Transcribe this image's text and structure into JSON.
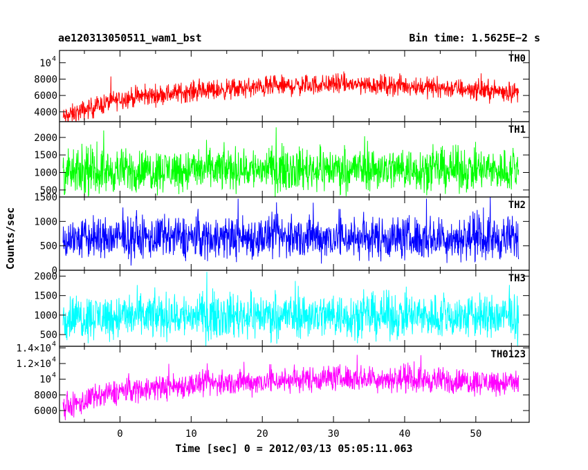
{
  "header": {
    "left_title": "ae120313050511_wam1_bst",
    "right_title": "Bin time: 1.5625E−2 s"
  },
  "chart_data": {
    "type": "line",
    "xlabel": "Time [sec] 0 = 2012/03/13 05:05:11.063",
    "ylabel": "Counts/sec",
    "xlim": [
      -8.5,
      57.5
    ],
    "x_range_data": [
      -8,
      56
    ],
    "x_ticks": [
      {
        "value": 0,
        "label": "0"
      },
      {
        "value": 10,
        "label": "10"
      },
      {
        "value": 20,
        "label": "20"
      },
      {
        "value": 30,
        "label": "30"
      },
      {
        "value": 40,
        "label": "40"
      },
      {
        "value": 50,
        "label": "50"
      }
    ],
    "panels": [
      {
        "name": "TH0",
        "color": "#ff0000",
        "ylim": [
          2800,
          11500
        ],
        "trend": [
          [
            -8,
            3300
          ],
          [
            -4,
            4500
          ],
          [
            0,
            5600
          ],
          [
            10,
            6500
          ],
          [
            20,
            7000
          ],
          [
            30,
            7400
          ],
          [
            40,
            7200
          ],
          [
            56,
            6400
          ]
        ],
        "spread": 1800,
        "yticks": [
          {
            "value": 4000,
            "label": "4000"
          },
          {
            "value": 6000,
            "label": "6000"
          },
          {
            "value": 8000,
            "label": "8000"
          },
          {
            "value": 10000,
            "label": "10",
            "exp": "4"
          }
        ]
      },
      {
        "name": "TH1",
        "color": "#00ff00",
        "ylim": [
          300,
          2450
        ],
        "trend": [
          [
            -8,
            950
          ],
          [
            0,
            1050
          ],
          [
            20,
            1100
          ],
          [
            40,
            1100
          ],
          [
            56,
            1050
          ]
        ],
        "spread": 900,
        "yticks": [
          {
            "value": 500,
            "label": "500"
          },
          {
            "value": 1000,
            "label": "1000"
          },
          {
            "value": 1500,
            "label": "1500"
          },
          {
            "value": 2000,
            "label": "2000"
          }
        ]
      },
      {
        "name": "TH2",
        "color": "#0000ff",
        "ylim": [
          0,
          1500
        ],
        "trend": [
          [
            -8,
            650
          ],
          [
            20,
            680
          ],
          [
            56,
            650
          ]
        ],
        "spread": 650,
        "yticks": [
          {
            "value": 0,
            "label": "0"
          },
          {
            "value": 500,
            "label": "500"
          },
          {
            "value": 1000,
            "label": "1000"
          },
          {
            "value": 1500,
            "label": "1500"
          }
        ]
      },
      {
        "name": "TH3",
        "color": "#00ffff",
        "ylim": [
          200,
          2150
        ],
        "trend": [
          [
            -8,
            950
          ],
          [
            20,
            1000
          ],
          [
            56,
            950
          ]
        ],
        "spread": 850,
        "yticks": [
          {
            "value": 500,
            "label": "500"
          },
          {
            "value": 1000,
            "label": "1000"
          },
          {
            "value": 1500,
            "label": "1500"
          },
          {
            "value": 2000,
            "label": "2000"
          }
        ]
      },
      {
        "name": "TH0123",
        "color": "#ff00ff",
        "ylim": [
          4500,
          14200
        ],
        "trend": [
          [
            -8,
            6200
          ],
          [
            -4,
            7500
          ],
          [
            0,
            8500
          ],
          [
            10,
            9300
          ],
          [
            20,
            9700
          ],
          [
            30,
            10200
          ],
          [
            40,
            10000
          ],
          [
            56,
            9500
          ]
        ],
        "spread": 2400,
        "yticks": [
          {
            "value": 6000,
            "label": "6000"
          },
          {
            "value": 8000,
            "label": "8000"
          },
          {
            "value": 10000,
            "label": "10",
            "exp": "4"
          },
          {
            "value": 12000,
            "label": "1.2×10",
            "exp": "4"
          },
          {
            "value": 14000,
            "label": "1.4×10",
            "exp": "4"
          }
        ]
      }
    ]
  }
}
